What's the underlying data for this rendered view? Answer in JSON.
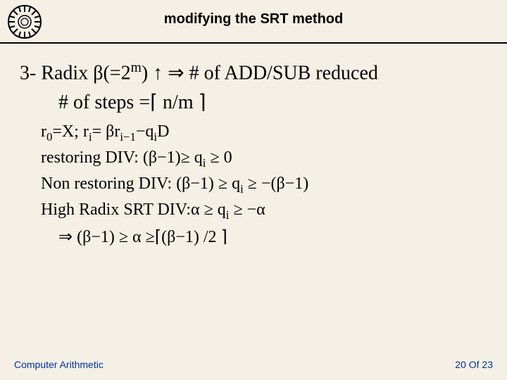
{
  "title": {
    "text": "modifying the SRT method",
    "fontsize": 20
  },
  "body": {
    "main_fontsize": 28,
    "sub_fontsize": 24,
    "line1_html": "3- Radix β(=2<sup>m</sup>) ↑ ⇒ # of ADD/SUB reduced",
    "line2_html": "# of steps =⌈ n/m ⌉",
    "subline1_html": "r<sub>0</sub>=X; r<sub>i</sub>= βr<sub>i−1</sub>−q<sub>i</sub>D",
    "subline2_html": "restoring DIV: (β−1)≥ q<sub>i</sub> ≥ 0",
    "subline3_html": "Non restoring DIV: (β−1) ≥ q<sub>i</sub> ≥ −(β−1)",
    "subline4_html": "High Radix SRT DIV:α ≥ q<sub>i</sub> ≥ −α",
    "subline5_html": "⇒ (β−1) ≥ α ≥⌈(β−1) /2 ⌉"
  },
  "footer": {
    "left": "Computer Arithmetic",
    "right": "20 Of 23",
    "fontsize": 14
  },
  "colors": {
    "background": "#f5f0e6",
    "text": "#000000",
    "footer": "#003399",
    "rule": "#000000"
  }
}
